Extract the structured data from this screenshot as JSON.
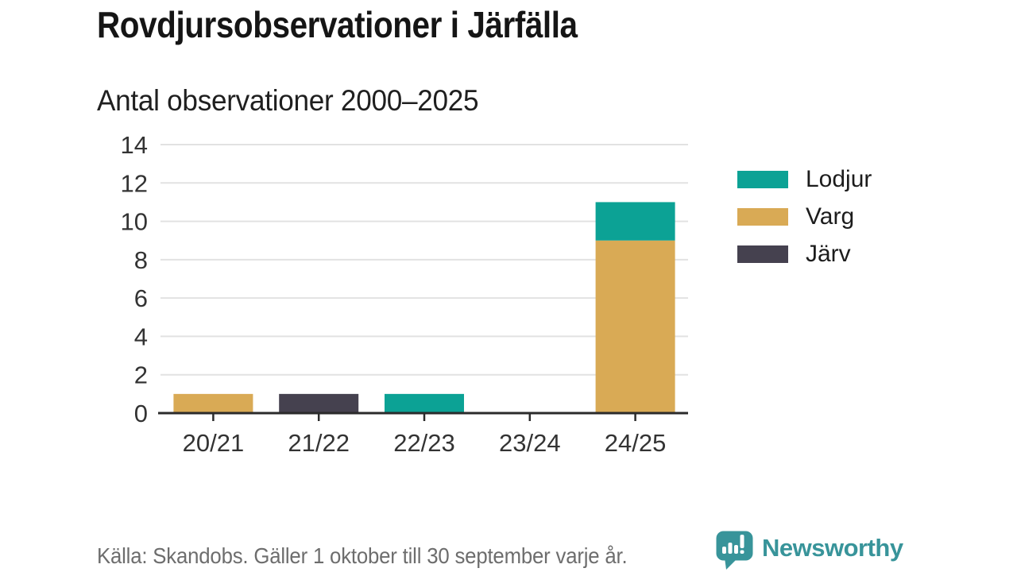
{
  "title": "Rovdjursobservationer i Järfälla",
  "subtitle": "Antal observationer 2000–2025",
  "footer": {
    "source": "Källa: Skandobs. Gäller 1 oktober till 30 september varje år."
  },
  "brand": {
    "name": "Newsworthy",
    "color": "#38949a",
    "icon": "bar-chart-speech-bubble"
  },
  "chart_data": {
    "type": "bar",
    "stacked": true,
    "title": "Rovdjursobservationer i Järfälla",
    "subtitle": "Antal observationer 2000–2025",
    "categories": [
      "20/21",
      "21/22",
      "22/23",
      "23/24",
      "24/25"
    ],
    "series": [
      {
        "name": "Lodjur",
        "color": "#0ca295",
        "values": [
          0,
          0,
          1,
          0,
          2
        ]
      },
      {
        "name": "Varg",
        "color": "#d9aa55",
        "values": [
          1,
          0,
          0,
          0,
          9
        ]
      },
      {
        "name": "Järv",
        "color": "#45414f",
        "values": [
          0,
          1,
          0,
          0,
          0
        ]
      }
    ],
    "stack_order_bottom_up": [
      "Järv",
      "Varg",
      "Lodjur"
    ],
    "totals_by_category": [
      1,
      1,
      1,
      0,
      11
    ],
    "ylabel": "",
    "xlabel": "",
    "ylim": [
      0,
      14
    ],
    "yticks": [
      0,
      2,
      4,
      6,
      8,
      10,
      12,
      14
    ],
    "grid": true,
    "legend_position": "right"
  }
}
